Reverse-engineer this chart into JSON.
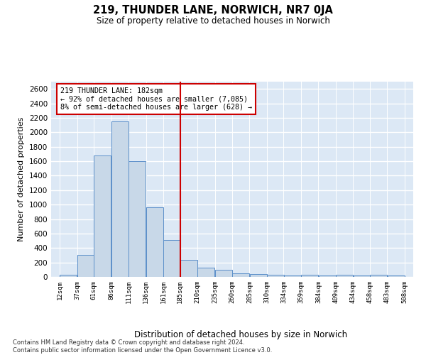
{
  "title": "219, THUNDER LANE, NORWICH, NR7 0JA",
  "subtitle": "Size of property relative to detached houses in Norwich",
  "xlabel": "Distribution of detached houses by size in Norwich",
  "ylabel": "Number of detached properties",
  "bar_color": "#c8d8e8",
  "bar_edge_color": "#5b8fc9",
  "background_color": "#dce8f5",
  "grid_color": "#ffffff",
  "vline_x": 185,
  "vline_color": "#cc0000",
  "bins": [
    12,
    37,
    61,
    86,
    111,
    136,
    161,
    185,
    210,
    235,
    260,
    285,
    310,
    334,
    359,
    384,
    409,
    434,
    458,
    483,
    508
  ],
  "values": [
    25,
    300,
    1675,
    2150,
    1600,
    960,
    510,
    240,
    125,
    100,
    50,
    35,
    30,
    20,
    30,
    20,
    30,
    20,
    25,
    20
  ],
  "ylim": [
    0,
    2700
  ],
  "yticks": [
    0,
    200,
    400,
    600,
    800,
    1000,
    1200,
    1400,
    1600,
    1800,
    2000,
    2200,
    2400,
    2600
  ],
  "tick_labels": [
    "12sqm",
    "37sqm",
    "61sqm",
    "86sqm",
    "111sqm",
    "136sqm",
    "161sqm",
    "185sqm",
    "210sqm",
    "235sqm",
    "260sqm",
    "285sqm",
    "310sqm",
    "334sqm",
    "359sqm",
    "384sqm",
    "409sqm",
    "434sqm",
    "458sqm",
    "483sqm",
    "508sqm"
  ],
  "annotation_title": "219 THUNDER LANE: 182sqm",
  "annotation_line1": "← 92% of detached houses are smaller (7,085)",
  "annotation_line2": "8% of semi-detached houses are larger (628) →",
  "footer_line1": "Contains HM Land Registry data © Crown copyright and database right 2024.",
  "footer_line2": "Contains public sector information licensed under the Open Government Licence v3.0."
}
